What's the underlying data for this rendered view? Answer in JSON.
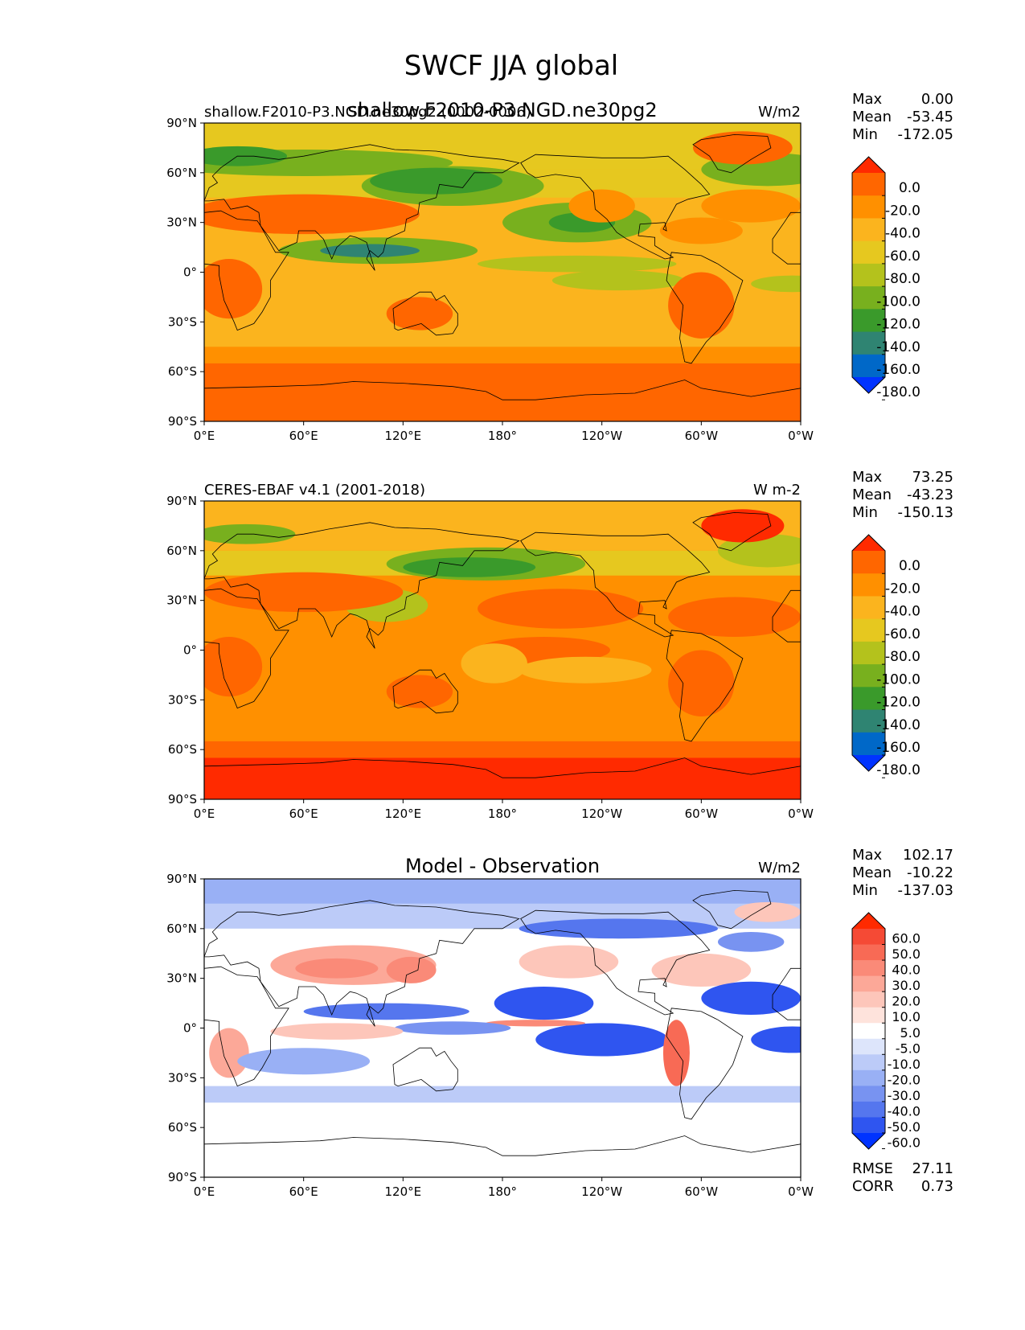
{
  "figure": {
    "title": "SWCF JJA global"
  },
  "chart_data": [
    {
      "type": "heatmap",
      "panel": "test",
      "title": "shallow.F2010-P3.NGD.ne30pg2",
      "left_label": "shallow.F2010-P3.NGD.ne30pg2 (0002-0006)",
      "units": "W/m2",
      "x_ticks": [
        "0°E",
        "60°E",
        "120°E",
        "180°",
        "120°W",
        "60°W",
        "0°W"
      ],
      "y_ticks": [
        "90°N",
        "60°N",
        "30°N",
        "0°",
        "30°S",
        "60°S",
        "90°S"
      ],
      "xlim": [
        0,
        360
      ],
      "ylim": [
        -90,
        90
      ],
      "stats": {
        "max_label": "Max",
        "max": "0.00",
        "mean_label": "Mean",
        "mean": "-53.45",
        "min_label": "Min",
        "min": "-172.05"
      },
      "colorbar": {
        "extend": "both",
        "levels": [
          "0.0",
          "-20.0",
          "-40.0",
          "-60.0",
          "-80.0",
          "-100.0",
          "-120.0",
          "-140.0",
          "-160.0",
          "-180.0"
        ],
        "colors": [
          "#ff2a00",
          "#ff6600",
          "#ff9000",
          "#fbb41e",
          "#e6c81f",
          "#b4c21c",
          "#78b01e",
          "#3a9a2b",
          "#2f8472",
          "#0068c8",
          "#0033ff"
        ]
      }
    },
    {
      "type": "heatmap",
      "panel": "reference",
      "title": "",
      "left_label": "CERES-EBAF v4.1 (2001-2018)",
      "units": "W m-2",
      "x_ticks": [
        "0°E",
        "60°E",
        "120°E",
        "180°",
        "120°W",
        "60°W",
        "0°W"
      ],
      "y_ticks": [
        "90°N",
        "60°N",
        "30°N",
        "0°",
        "30°S",
        "60°S",
        "90°S"
      ],
      "xlim": [
        0,
        360
      ],
      "ylim": [
        -90,
        90
      ],
      "stats": {
        "max_label": "Max",
        "max": "73.25",
        "mean_label": "Mean",
        "mean": "-43.23",
        "min_label": "Min",
        "min": "-150.13"
      },
      "colorbar": {
        "extend": "both",
        "levels": [
          "0.0",
          "-20.0",
          "-40.0",
          "-60.0",
          "-80.0",
          "-100.0",
          "-120.0",
          "-140.0",
          "-160.0",
          "-180.0"
        ],
        "colors": [
          "#ff2a00",
          "#ff6600",
          "#ff9000",
          "#fbb41e",
          "#e6c81f",
          "#b4c21c",
          "#78b01e",
          "#3a9a2b",
          "#2f8472",
          "#0068c8",
          "#0033ff"
        ]
      }
    },
    {
      "type": "heatmap",
      "panel": "difference",
      "title": "Model - Observation",
      "left_label": "",
      "units": "W/m2",
      "x_ticks": [
        "0°E",
        "60°E",
        "120°E",
        "180°",
        "120°W",
        "60°W",
        "0°W"
      ],
      "y_ticks": [
        "90°N",
        "60°N",
        "30°N",
        "0°",
        "30°S",
        "60°S",
        "90°S"
      ],
      "xlim": [
        0,
        360
      ],
      "ylim": [
        -90,
        90
      ],
      "stats": {
        "max_label": "Max",
        "max": "102.17",
        "mean_label": "Mean",
        "mean": "-10.22",
        "min_label": "Min",
        "min": "-137.03"
      },
      "extra_stats": {
        "rmse_label": "RMSE",
        "rmse": "27.11",
        "corr_label": "CORR",
        "corr": "0.73"
      },
      "colorbar": {
        "extend": "both",
        "levels": [
          "60.0",
          "50.0",
          "40.0",
          "30.0",
          "20.0",
          "10.0",
          "5.0",
          "-5.0",
          "-10.0",
          "-20.0",
          "-30.0",
          "-40.0",
          "-50.0",
          "-60.0"
        ],
        "colors": [
          "#ff2a00",
          "#f54a35",
          "#f86a55",
          "#fa8a78",
          "#fca898",
          "#fdc6ba",
          "#fee3dc",
          "#ffffff",
          "#dde5fb",
          "#bccbf8",
          "#99b0f5",
          "#7893f1",
          "#5576ee",
          "#2f55f0",
          "#0033ff"
        ]
      }
    }
  ]
}
